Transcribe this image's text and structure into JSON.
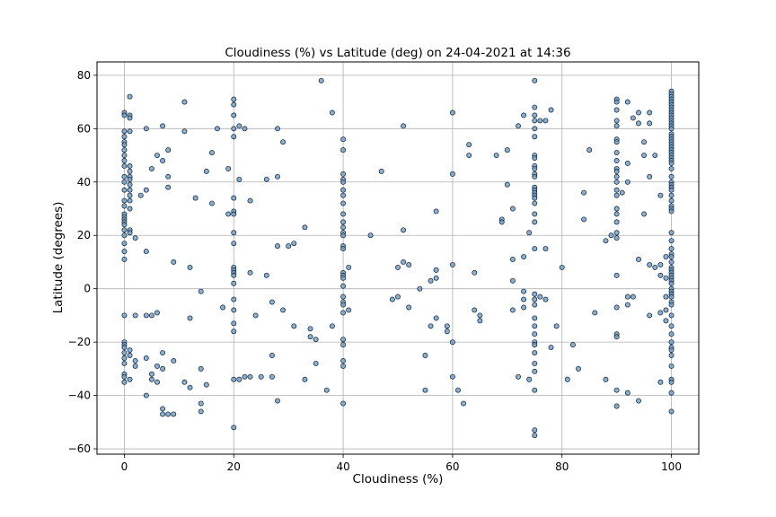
{
  "chart_data": {
    "type": "scatter",
    "title": "Cloudiness (%) vs Latitude (deg) on 24-04-2021 at 14:36",
    "xlabel": "Cloudiness (%)",
    "ylabel": "Latitude (degrees)",
    "xlim": [
      -5,
      105
    ],
    "ylim": [
      -62,
      85
    ],
    "xticks": [
      0,
      20,
      40,
      60,
      80,
      100
    ],
    "yticks": [
      -60,
      -40,
      -20,
      0,
      20,
      40,
      60,
      80
    ],
    "grid": true,
    "marker_color": "#6f9cc4",
    "marker_edge": "#0b1e33",
    "points": [
      [
        0,
        66
      ],
      [
        0,
        65
      ],
      [
        0,
        59
      ],
      [
        0,
        57
      ],
      [
        0,
        55
      ],
      [
        0,
        54
      ],
      [
        0,
        52
      ],
      [
        0,
        50
      ],
      [
        0,
        48
      ],
      [
        0,
        46
      ],
      [
        0,
        42
      ],
      [
        0,
        40
      ],
      [
        0,
        37
      ],
      [
        0,
        33
      ],
      [
        0,
        31
      ],
      [
        0,
        28
      ],
      [
        0,
        27
      ],
      [
        0,
        26
      ],
      [
        0,
        25
      ],
      [
        0,
        24
      ],
      [
        0,
        22
      ],
      [
        0,
        20
      ],
      [
        0,
        17
      ],
      [
        0,
        14
      ],
      [
        0,
        11
      ],
      [
        0,
        -10
      ],
      [
        0,
        -20
      ],
      [
        0,
        -21
      ],
      [
        0,
        -22
      ],
      [
        0,
        -24
      ],
      [
        0,
        -26
      ],
      [
        0,
        -28
      ],
      [
        0,
        -32
      ],
      [
        0,
        -33
      ],
      [
        0,
        -35
      ],
      [
        1,
        72
      ],
      [
        1,
        65
      ],
      [
        1,
        64
      ],
      [
        1,
        59
      ],
      [
        1,
        46
      ],
      [
        1,
        44
      ],
      [
        1,
        42
      ],
      [
        1,
        41
      ],
      [
        1,
        39
      ],
      [
        1,
        37
      ],
      [
        1,
        35
      ],
      [
        1,
        33
      ],
      [
        1,
        30
      ],
      [
        1,
        22
      ],
      [
        1,
        21
      ],
      [
        1,
        -23
      ],
      [
        1,
        -25
      ],
      [
        1,
        -34
      ],
      [
        2,
        19
      ],
      [
        2,
        -10
      ],
      [
        2,
        -27
      ],
      [
        2,
        -29
      ],
      [
        3,
        35
      ],
      [
        4,
        60
      ],
      [
        4,
        37
      ],
      [
        4,
        14
      ],
      [
        4,
        -10
      ],
      [
        4,
        -26
      ],
      [
        4,
        -40
      ],
      [
        5,
        45
      ],
      [
        5,
        -10
      ],
      [
        5,
        -32
      ],
      [
        5,
        -34
      ],
      [
        6,
        50
      ],
      [
        6,
        -9
      ],
      [
        6,
        -29
      ],
      [
        6,
        -35
      ],
      [
        7,
        61
      ],
      [
        7,
        48
      ],
      [
        7,
        -24
      ],
      [
        7,
        -30
      ],
      [
        7,
        -45
      ],
      [
        7,
        -47
      ],
      [
        8,
        52
      ],
      [
        8,
        42
      ],
      [
        8,
        38
      ],
      [
        8,
        -47
      ],
      [
        9,
        10
      ],
      [
        9,
        -27
      ],
      [
        9,
        -47
      ],
      [
        11,
        70
      ],
      [
        11,
        59
      ],
      [
        11,
        -35
      ],
      [
        12,
        8
      ],
      [
        12,
        -11
      ],
      [
        12,
        -37
      ],
      [
        13,
        34
      ],
      [
        14,
        -1
      ],
      [
        14,
        -30
      ],
      [
        14,
        -43
      ],
      [
        14,
        -46
      ],
      [
        15,
        44
      ],
      [
        15,
        -36
      ],
      [
        16,
        51
      ],
      [
        16,
        32
      ],
      [
        17,
        60
      ],
      [
        18,
        -7
      ],
      [
        19,
        45
      ],
      [
        19,
        28
      ],
      [
        20,
        71
      ],
      [
        20,
        69
      ],
      [
        20,
        65
      ],
      [
        20,
        60
      ],
      [
        20,
        57
      ],
      [
        20,
        34
      ],
      [
        20,
        29
      ],
      [
        20,
        28
      ],
      [
        20,
        21
      ],
      [
        20,
        17
      ],
      [
        20,
        8
      ],
      [
        20,
        7
      ],
      [
        20,
        6
      ],
      [
        20,
        5
      ],
      [
        20,
        2
      ],
      [
        20,
        -4
      ],
      [
        20,
        -8
      ],
      [
        20,
        -13
      ],
      [
        20,
        -16
      ],
      [
        20,
        -34
      ],
      [
        20,
        -52
      ],
      [
        21,
        61
      ],
      [
        21,
        41
      ],
      [
        21,
        -34
      ],
      [
        22,
        60
      ],
      [
        22,
        -33
      ],
      [
        23,
        33
      ],
      [
        23,
        6
      ],
      [
        23,
        -33
      ],
      [
        24,
        -10
      ],
      [
        25,
        -33
      ],
      [
        26,
        41
      ],
      [
        26,
        5
      ],
      [
        27,
        -5
      ],
      [
        27,
        -25
      ],
      [
        27,
        -33
      ],
      [
        28,
        60
      ],
      [
        28,
        42
      ],
      [
        28,
        16
      ],
      [
        28,
        -42
      ],
      [
        29,
        55
      ],
      [
        29,
        -8
      ],
      [
        30,
        16
      ],
      [
        31,
        17
      ],
      [
        31,
        -14
      ],
      [
        33,
        23
      ],
      [
        33,
        -34
      ],
      [
        34,
        -15
      ],
      [
        34,
        -18
      ],
      [
        35,
        -28
      ],
      [
        35,
        -19
      ],
      [
        36,
        78
      ],
      [
        37,
        -38
      ],
      [
        38,
        66
      ],
      [
        38,
        -14
      ],
      [
        40,
        56
      ],
      [
        40,
        52
      ],
      [
        40,
        43
      ],
      [
        40,
        41
      ],
      [
        40,
        40
      ],
      [
        40,
        37
      ],
      [
        40,
        35
      ],
      [
        40,
        32
      ],
      [
        40,
        28
      ],
      [
        40,
        25
      ],
      [
        40,
        23
      ],
      [
        40,
        21
      ],
      [
        40,
        20
      ],
      [
        40,
        16
      ],
      [
        40,
        15
      ],
      [
        40,
        6
      ],
      [
        40,
        5
      ],
      [
        40,
        4
      ],
      [
        40,
        1
      ],
      [
        40,
        -3
      ],
      [
        40,
        -5
      ],
      [
        40,
        -6
      ],
      [
        40,
        -9
      ],
      [
        40,
        -19
      ],
      [
        40,
        -21
      ],
      [
        40,
        -27
      ],
      [
        40,
        -29
      ],
      [
        40,
        -43
      ],
      [
        41,
        8
      ],
      [
        41,
        -8
      ],
      [
        45,
        20
      ],
      [
        47,
        44
      ],
      [
        49,
        -4
      ],
      [
        50,
        -3
      ],
      [
        50,
        8
      ],
      [
        51,
        61
      ],
      [
        51,
        22
      ],
      [
        51,
        10
      ],
      [
        52,
        9
      ],
      [
        52,
        -7
      ],
      [
        54,
        0
      ],
      [
        55,
        -25
      ],
      [
        55,
        -38
      ],
      [
        56,
        -14
      ],
      [
        56,
        3
      ],
      [
        57,
        29
      ],
      [
        57,
        7
      ],
      [
        57,
        4
      ],
      [
        57,
        -11
      ],
      [
        59,
        -14
      ],
      [
        59,
        -16
      ],
      [
        60,
        66
      ],
      [
        60,
        43
      ],
      [
        60,
        9
      ],
      [
        60,
        -20
      ],
      [
        60,
        -33
      ],
      [
        61,
        -38
      ],
      [
        62,
        -43
      ],
      [
        63,
        54
      ],
      [
        63,
        50
      ],
      [
        64,
        6
      ],
      [
        64,
        -8
      ],
      [
        65,
        -10
      ],
      [
        65,
        -12
      ],
      [
        68,
        50
      ],
      [
        69,
        26
      ],
      [
        69,
        25
      ],
      [
        70,
        52
      ],
      [
        70,
        39
      ],
      [
        71,
        30
      ],
      [
        71,
        11
      ],
      [
        71,
        3
      ],
      [
        71,
        -8
      ],
      [
        72,
        61
      ],
      [
        72,
        -33
      ],
      [
        73,
        65
      ],
      [
        73,
        12
      ],
      [
        73,
        -1
      ],
      [
        73,
        -4
      ],
      [
        73,
        -7
      ],
      [
        74,
        21
      ],
      [
        74,
        -34
      ],
      [
        75,
        78
      ],
      [
        75,
        68
      ],
      [
        75,
        65
      ],
      [
        75,
        63
      ],
      [
        75,
        60
      ],
      [
        75,
        57
      ],
      [
        75,
        50
      ],
      [
        75,
        49
      ],
      [
        75,
        46
      ],
      [
        75,
        45
      ],
      [
        75,
        43
      ],
      [
        75,
        42
      ],
      [
        75,
        38
      ],
      [
        75,
        37
      ],
      [
        75,
        36
      ],
      [
        75,
        35
      ],
      [
        75,
        34
      ],
      [
        75,
        32
      ],
      [
        75,
        28
      ],
      [
        75,
        25
      ],
      [
        75,
        15
      ],
      [
        75,
        -2
      ],
      [
        75,
        -4
      ],
      [
        75,
        -6
      ],
      [
        75,
        -11
      ],
      [
        75,
        -14
      ],
      [
        75,
        -17
      ],
      [
        75,
        -20
      ],
      [
        75,
        -21
      ],
      [
        75,
        -24
      ],
      [
        75,
        -28
      ],
      [
        75,
        -31
      ],
      [
        75,
        -38
      ],
      [
        75,
        -53
      ],
      [
        75,
        -55
      ],
      [
        76,
        63
      ],
      [
        76,
        -3
      ],
      [
        77,
        63
      ],
      [
        77,
        -4
      ],
      [
        77,
        15
      ],
      [
        78,
        67
      ],
      [
        78,
        -22
      ],
      [
        79,
        -14
      ],
      [
        80,
        8
      ],
      [
        81,
        -34
      ],
      [
        82,
        -21
      ],
      [
        83,
        -30
      ],
      [
        84,
        36
      ],
      [
        84,
        26
      ],
      [
        85,
        52
      ],
      [
        86,
        -9
      ],
      [
        88,
        -34
      ],
      [
        88,
        18
      ],
      [
        89,
        20
      ],
      [
        90,
        71
      ],
      [
        90,
        70
      ],
      [
        90,
        67
      ],
      [
        90,
        63
      ],
      [
        90,
        61
      ],
      [
        90,
        56
      ],
      [
        90,
        55
      ],
      [
        90,
        51
      ],
      [
        90,
        48
      ],
      [
        90,
        45
      ],
      [
        90,
        44
      ],
      [
        90,
        42
      ],
      [
        90,
        40
      ],
      [
        90,
        37
      ],
      [
        90,
        35
      ],
      [
        90,
        30
      ],
      [
        90,
        28
      ],
      [
        90,
        25
      ],
      [
        90,
        21
      ],
      [
        90,
        19
      ],
      [
        90,
        5
      ],
      [
        90,
        -7
      ],
      [
        90,
        -17
      ],
      [
        90,
        -18
      ],
      [
        90,
        -38
      ],
      [
        90,
        -44
      ],
      [
        91,
        36
      ],
      [
        92,
        70
      ],
      [
        92,
        47
      ],
      [
        92,
        40
      ],
      [
        92,
        -3
      ],
      [
        92,
        -6
      ],
      [
        92,
        -39
      ],
      [
        93,
        64
      ],
      [
        93,
        -3
      ],
      [
        94,
        66
      ],
      [
        94,
        62
      ],
      [
        94,
        11
      ],
      [
        94,
        -42
      ],
      [
        95,
        55
      ],
      [
        95,
        50
      ],
      [
        95,
        28
      ],
      [
        96,
        66
      ],
      [
        96,
        62
      ],
      [
        96,
        42
      ],
      [
        96,
        9
      ],
      [
        96,
        -10
      ],
      [
        97,
        50
      ],
      [
        97,
        8
      ],
      [
        98,
        35
      ],
      [
        98,
        9
      ],
      [
        98,
        5
      ],
      [
        98,
        -9
      ],
      [
        98,
        -35
      ],
      [
        99,
        12
      ],
      [
        99,
        4
      ],
      [
        99,
        -3
      ],
      [
        99,
        -8
      ],
      [
        99,
        -12
      ],
      [
        100,
        74
      ],
      [
        100,
        73
      ],
      [
        100,
        72
      ],
      [
        100,
        71
      ],
      [
        100,
        70
      ],
      [
        100,
        69
      ],
      [
        100,
        68
      ],
      [
        100,
        67
      ],
      [
        100,
        66
      ],
      [
        100,
        65
      ],
      [
        100,
        64
      ],
      [
        100,
        63
      ],
      [
        100,
        62
      ],
      [
        100,
        61
      ],
      [
        100,
        60
      ],
      [
        100,
        58
      ],
      [
        100,
        57
      ],
      [
        100,
        56
      ],
      [
        100,
        55
      ],
      [
        100,
        54
      ],
      [
        100,
        53
      ],
      [
        100,
        52
      ],
      [
        100,
        51
      ],
      [
        100,
        50
      ],
      [
        100,
        49
      ],
      [
        100,
        48
      ],
      [
        100,
        47
      ],
      [
        100,
        45
      ],
      [
        100,
        42
      ],
      [
        100,
        40
      ],
      [
        100,
        39
      ],
      [
        100,
        38
      ],
      [
        100,
        37
      ],
      [
        100,
        35
      ],
      [
        100,
        33
      ],
      [
        100,
        31
      ],
      [
        100,
        30
      ],
      [
        100,
        29
      ],
      [
        100,
        21
      ],
      [
        100,
        18
      ],
      [
        100,
        15
      ],
      [
        100,
        13
      ],
      [
        100,
        12
      ],
      [
        100,
        10
      ],
      [
        100,
        8
      ],
      [
        100,
        7
      ],
      [
        100,
        6
      ],
      [
        100,
        5
      ],
      [
        100,
        4
      ],
      [
        100,
        3
      ],
      [
        100,
        2
      ],
      [
        100,
        0
      ],
      [
        100,
        -1
      ],
      [
        100,
        -2
      ],
      [
        100,
        -3
      ],
      [
        100,
        -5
      ],
      [
        100,
        -6
      ],
      [
        100,
        -10
      ],
      [
        100,
        -14
      ],
      [
        100,
        -17
      ],
      [
        100,
        -20
      ],
      [
        100,
        -22
      ],
      [
        100,
        -23
      ],
      [
        100,
        -25
      ],
      [
        100,
        -29
      ],
      [
        100,
        -34
      ],
      [
        100,
        -35
      ],
      [
        100,
        -39
      ],
      [
        100,
        -46
      ]
    ]
  }
}
